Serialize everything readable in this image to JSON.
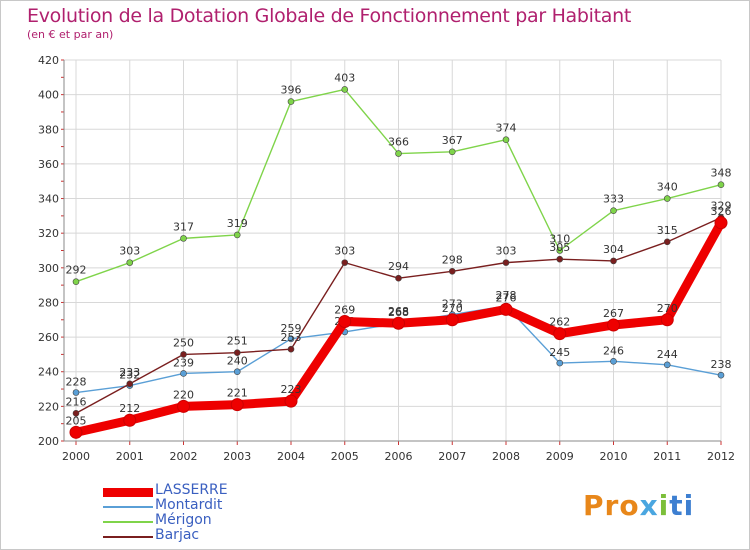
{
  "chart_data": {
    "type": "line",
    "title": "Evolution de la Dotation Globale de Fonctionnement par Habitant",
    "subtitle": "(en € et par an)",
    "x": [
      "2000",
      "2001",
      "2002",
      "2003",
      "2004",
      "2005",
      "2006",
      "2007",
      "2008",
      "2009",
      "2010",
      "2011",
      "2012"
    ],
    "ylim": [
      200,
      420
    ],
    "yticks": [
      200,
      220,
      240,
      260,
      280,
      300,
      320,
      340,
      360,
      380,
      400,
      420
    ],
    "grid": true,
    "legend_position": "bottom-left",
    "series": [
      {
        "name": "LASSERRE",
        "color": "#ee0000",
        "values": [
          205,
          212,
          220,
          221,
          223,
          269,
          268,
          270,
          276,
          262,
          267,
          270,
          326
        ]
      },
      {
        "name": "Montardit",
        "color": "#5a9fd6",
        "values": [
          228,
          232,
          239,
          240,
          259,
          263,
          268,
          273,
          278,
          245,
          246,
          244,
          238
        ]
      },
      {
        "name": "Mérigon",
        "color": "#7fd44a",
        "values": [
          292,
          303,
          317,
          319,
          396,
          403,
          366,
          367,
          374,
          310,
          333,
          340,
          348
        ]
      },
      {
        "name": "Barjac",
        "color": "#7a1f1f",
        "values": [
          216,
          233,
          250,
          251,
          253,
          303,
          294,
          298,
          303,
          305,
          304,
          315,
          329
        ]
      }
    ]
  },
  "logo": {
    "p1": "Pro",
    "p2": "x",
    "p3": "i",
    "p4": "ti"
  }
}
